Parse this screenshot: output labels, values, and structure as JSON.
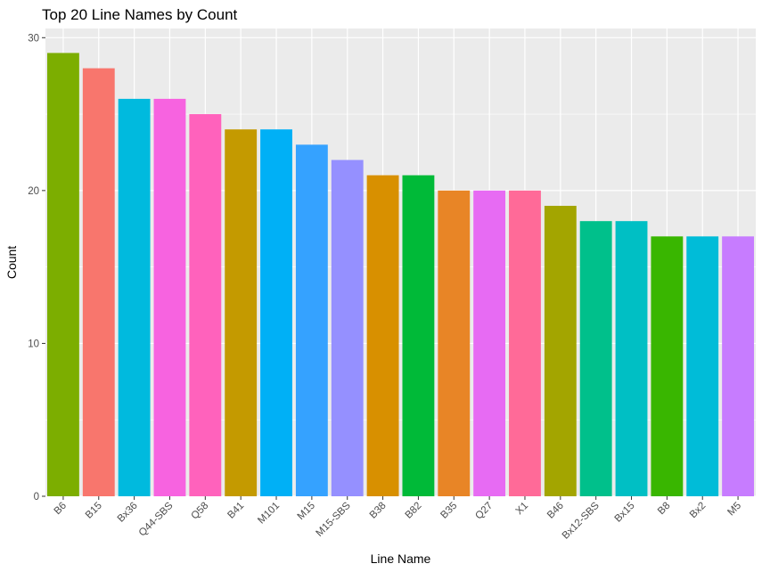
{
  "chart_data": {
    "type": "bar",
    "title": "Top 20 Line Names by Count",
    "xlabel": "Line Name",
    "ylabel": "Count",
    "ylim": [
      0,
      30.6
    ],
    "yticks": [
      0,
      10,
      20,
      30
    ],
    "grid": true,
    "legend": "none",
    "categories": [
      "B6",
      "B15",
      "Bx36",
      "Q44-SBS",
      "Q58",
      "B41",
      "M101",
      "M15",
      "M15-SBS",
      "B38",
      "B82",
      "B35",
      "Q27",
      "X1",
      "B46",
      "Bx12-SBS",
      "Bx15",
      "B8",
      "Bx2",
      "M5"
    ],
    "values": [
      29,
      28,
      26,
      26,
      25,
      24,
      24,
      23,
      22,
      21,
      21,
      20,
      20,
      20,
      19,
      18,
      18,
      17,
      17,
      17
    ],
    "colors": [
      "#7CAE00",
      "#F8766D",
      "#00BADE",
      "#F763E0",
      "#FF62BC",
      "#C49A00",
      "#00B0F6",
      "#35A2FF",
      "#9590FF",
      "#D89000",
      "#00BA38",
      "#E88526",
      "#E76BF3",
      "#FF6A98",
      "#A3A500",
      "#00C08B",
      "#00BFC4",
      "#39B600",
      "#00BCD8",
      "#C77CFF"
    ]
  }
}
